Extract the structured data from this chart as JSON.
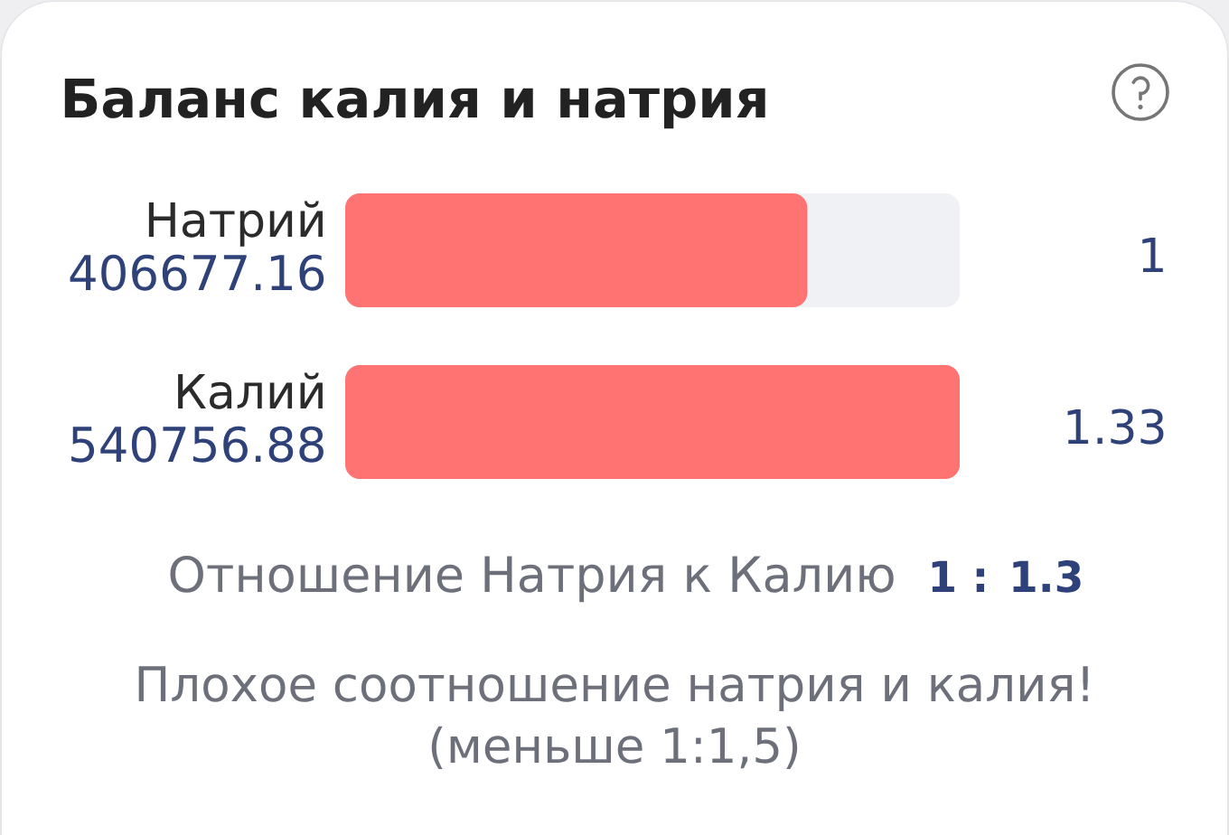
{
  "chart_data": {
    "type": "bar",
    "orientation": "horizontal",
    "title": "Баланс калия и натрия",
    "categories": [
      "Натрий",
      "Калий"
    ],
    "values": [
      406677.16,
      540756.88
    ],
    "color": "#ff7373",
    "data_labels": true,
    "annotations": [
      "1",
      "1.33",
      "Отношение Натрия к Калию",
      "1 : 1.3",
      "Плохое соотношение натрия и калия!",
      "(меньше 1:1,5)"
    ]
  }
}
